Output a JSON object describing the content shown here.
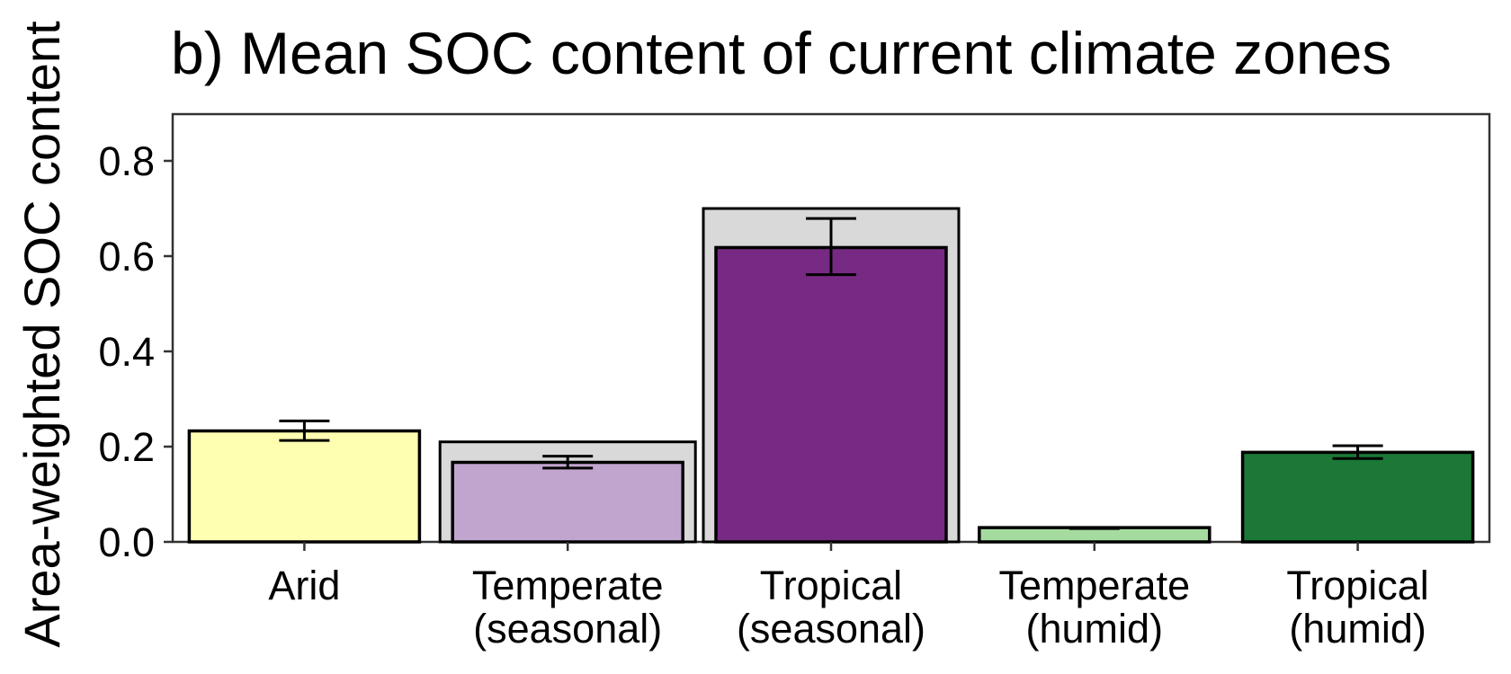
{
  "chart_data": {
    "type": "bar",
    "title": "b) Mean SOC content of current climate zones",
    "ylabel": "Area-weighted SOC content",
    "xlabel": "",
    "ylim": [
      0,
      0.9
    ],
    "yticks": [
      "0.0",
      "0.2",
      "0.4",
      "0.6",
      "0.8"
    ],
    "grid": false,
    "categories": [
      [
        "Arid"
      ],
      [
        "Temperate",
        "(seasonal)"
      ],
      [
        "Tropical",
        "(seasonal)"
      ],
      [
        "Temperate",
        "(humid)"
      ],
      [
        "Tropical",
        "(humid)"
      ]
    ],
    "background_values": [
      null,
      0.21,
      0.7,
      null,
      null
    ],
    "values": [
      0.233,
      0.167,
      0.618,
      0.03,
      0.188
    ],
    "error_low": [
      0.213,
      0.155,
      0.561,
      0.028,
      0.175
    ],
    "error_high": [
      0.254,
      0.18,
      0.679,
      0.03,
      0.202
    ],
    "colors": [
      "#ffffb2",
      "#c2a5cf",
      "#762a83",
      "#a6dba0",
      "#1b7837"
    ],
    "background_color": "#d9d9d9"
  }
}
